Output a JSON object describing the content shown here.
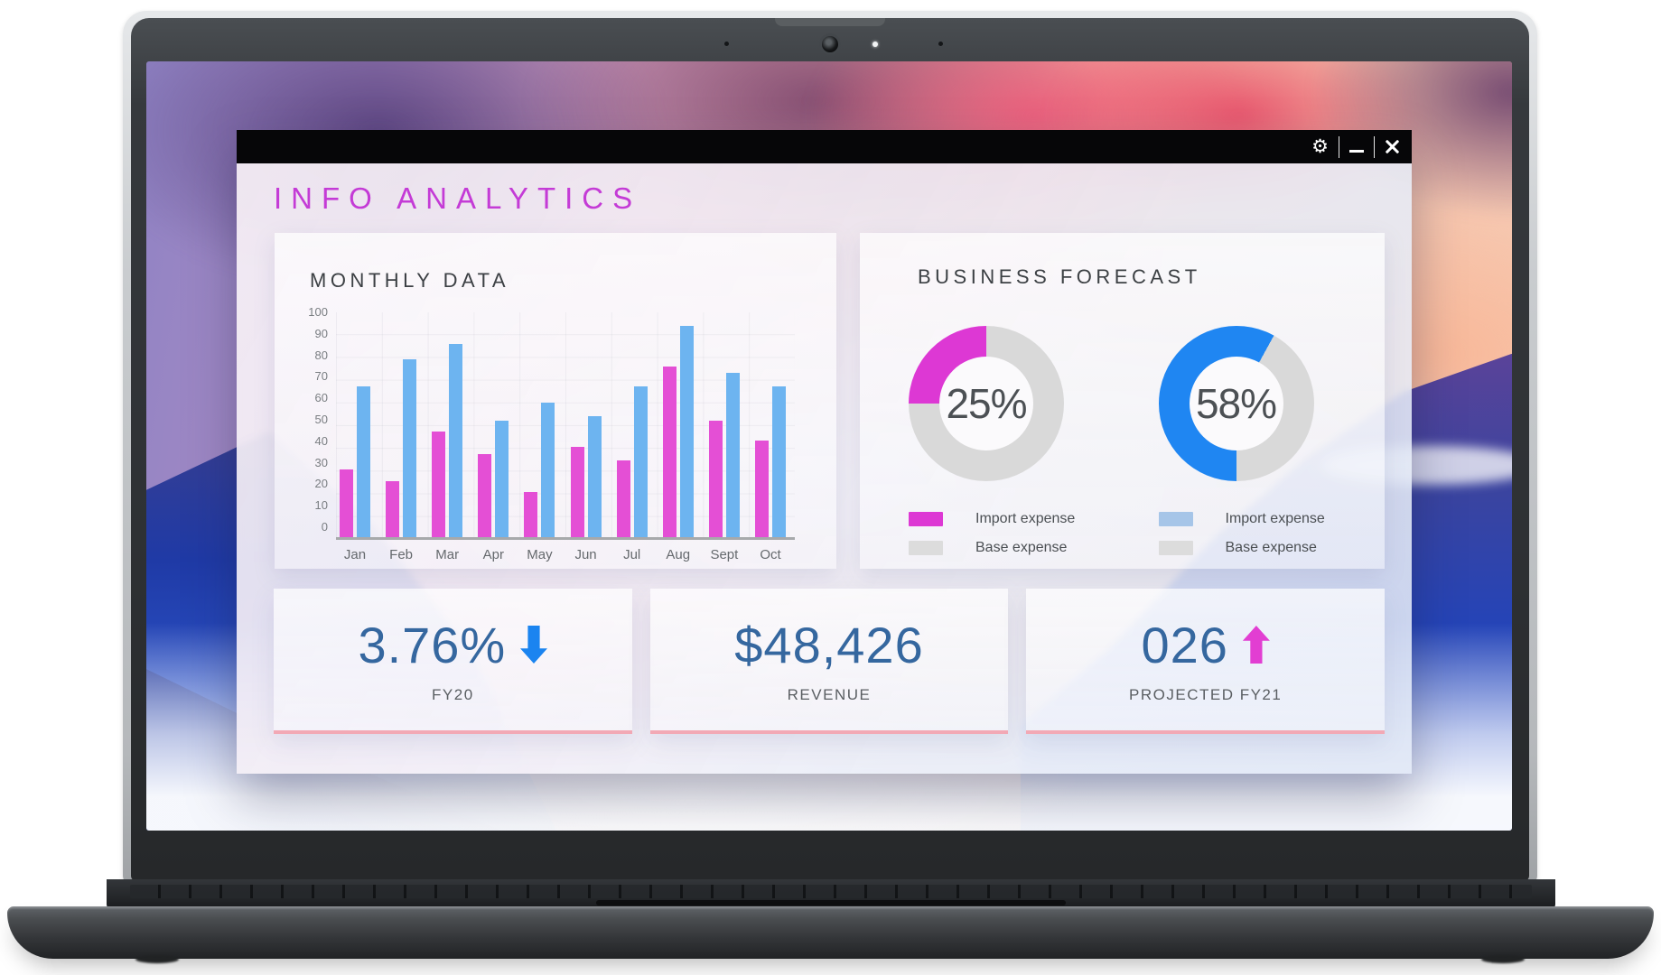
{
  "window": {
    "title": "INFO ANALYTICS",
    "controls": [
      {
        "name": "settings"
      },
      {
        "name": "minimize"
      },
      {
        "name": "close"
      }
    ]
  },
  "icons": {
    "settings_gear": "⚙"
  },
  "forecast": {
    "title": "BUSINESS FORECAST"
  },
  "stats": [
    {
      "value": "3.76%",
      "arrow": "down",
      "arrow_color": "#1b84f0",
      "label": "FY20"
    },
    {
      "value": "$48,426",
      "arrow": null,
      "label": "REVENUE"
    },
    {
      "value": "026",
      "arrow": "up",
      "arrow_color": "#e23ed2",
      "label": "PROJECTED FY21"
    }
  ],
  "colors": {
    "app_title_magenta": "#c43bd6",
    "bar_pink": "#e44fd5",
    "bar_blue": "#6db4f0",
    "donut_magenta": "#dd38d4",
    "donut_blue": "#1f86f2",
    "donut_gray": "#d9d9d9",
    "stat_value_blue": "#35679f",
    "stat_card_underline_pink": "#f2a9b5",
    "titlebar_black": "#060608"
  },
  "chart_data": [
    {
      "type": "bar",
      "title": "MONTHLY DATA",
      "categories": [
        "Jan",
        "Feb",
        "Mar",
        "Apr",
        "May",
        "Jun",
        "Jul",
        "Aug",
        "Sept",
        "Oct"
      ],
      "series": [
        {
          "name": "pink",
          "color": "#e44fd5",
          "values": [
            30,
            25,
            47,
            37,
            20,
            40,
            34,
            76,
            52,
            43
          ]
        },
        {
          "name": "blue",
          "color": "#6db4f0",
          "values": [
            67,
            79,
            86,
            52,
            60,
            54,
            67,
            94,
            73,
            67
          ]
        }
      ],
      "ylim": [
        0,
        100
      ],
      "yticks": [
        100,
        90,
        80,
        70,
        60,
        50,
        40,
        30,
        20,
        10,
        0
      ],
      "grid": true,
      "legend": false
    },
    {
      "type": "pie",
      "subtype": "donut",
      "title": "BUSINESS FORECAST — left donut",
      "center_label": "25%",
      "start_deg": 270,
      "slices": [
        {
          "label": "Import expense",
          "value": 25,
          "color": "#dd38d4",
          "swatch_color": "#dd38d4"
        },
        {
          "label": "Base expense",
          "value": 75,
          "color": "#d9d9d9",
          "swatch_color": "#dcdcdc"
        }
      ]
    },
    {
      "type": "pie",
      "subtype": "donut",
      "title": "BUSINESS FORECAST — right donut",
      "center_label": "58%",
      "start_deg": 180,
      "slices": [
        {
          "label": "Import expense",
          "value": 58,
          "color": "#1f86f2",
          "swatch_color": "#a6c5e8"
        },
        {
          "label": "Base expense",
          "value": 42,
          "color": "#d9d9d9",
          "swatch_color": "#dcdcdc"
        }
      ]
    }
  ]
}
